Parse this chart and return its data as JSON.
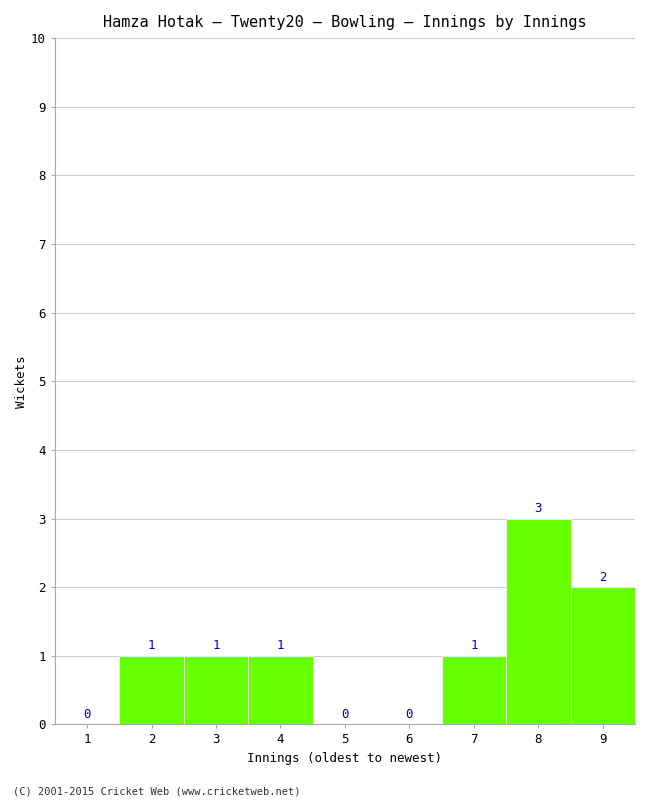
{
  "title": "Hamza Hotak – Twenty20 – Bowling – Innings by Innings",
  "xlabel": "Innings (oldest to newest)",
  "ylabel": "Wickets",
  "categories": [
    "1",
    "2",
    "3",
    "4",
    "5",
    "6",
    "7",
    "8",
    "9"
  ],
  "values": [
    0,
    1,
    1,
    1,
    0,
    0,
    1,
    3,
    2
  ],
  "bar_color": "#66ff00",
  "label_color": "#0000cc",
  "ylim": [
    0,
    10
  ],
  "yticks": [
    0,
    1,
    2,
    3,
    4,
    5,
    6,
    7,
    8,
    9,
    10
  ],
  "background_color": "#ffffff",
  "grid_color": "#cccccc",
  "footnote": "(C) 2001-2015 Cricket Web (www.cricketweb.net)",
  "title_fontsize": 11,
  "axis_label_fontsize": 9,
  "tick_fontsize": 9,
  "annotation_fontsize": 9,
  "figwidth": 6.5,
  "figheight": 8.0
}
